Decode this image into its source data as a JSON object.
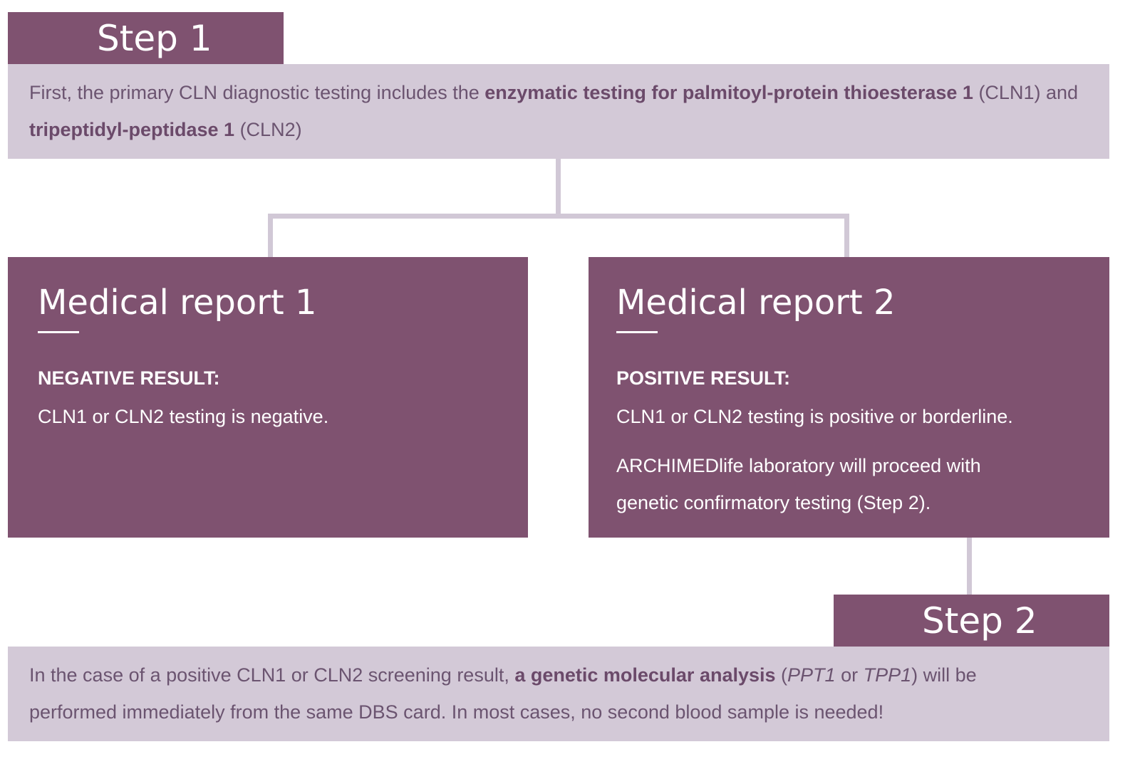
{
  "step1": {
    "label": "Step 1",
    "text": {
      "p1": "First, the primary CLN diagnostic testing includes the ",
      "b1": "enzymatic testing for palmitoyl-protein thioesterase 1",
      "p2": " (CLN1) and ",
      "b2": "tripeptidyl-peptidase 1",
      "p3": " (CLN2)"
    }
  },
  "report1": {
    "title": "Medical report 1",
    "result_label": "NEGATIVE RESULT:",
    "text": "CLN1 or CLN2 testing is negative."
  },
  "report2": {
    "title": "Medical report 2",
    "result_label": "POSITIVE RESULT:",
    "text1": "CLN1 or CLN2 testing is positive or borderline.",
    "text2": "ARCHIMEDlife laboratory will proceed with genetic confirmatory testing (Step 2)."
  },
  "step2": {
    "label": "Step 2",
    "text": {
      "p1": "In the case of a positive CLN1 or CLN2 screening result, ",
      "b1": "a genetic molecular analysis",
      "p2": " (",
      "i1": "PPT1",
      "p3": " or ",
      "i2": "TPP1",
      "p4": ") will be performed immediately from the same DBS card. In most cases, no second blood sample is needed!"
    }
  },
  "colors": {
    "dark": "#7f5270",
    "light": "#d3c9d7",
    "connector": "#d1c8d6"
  }
}
